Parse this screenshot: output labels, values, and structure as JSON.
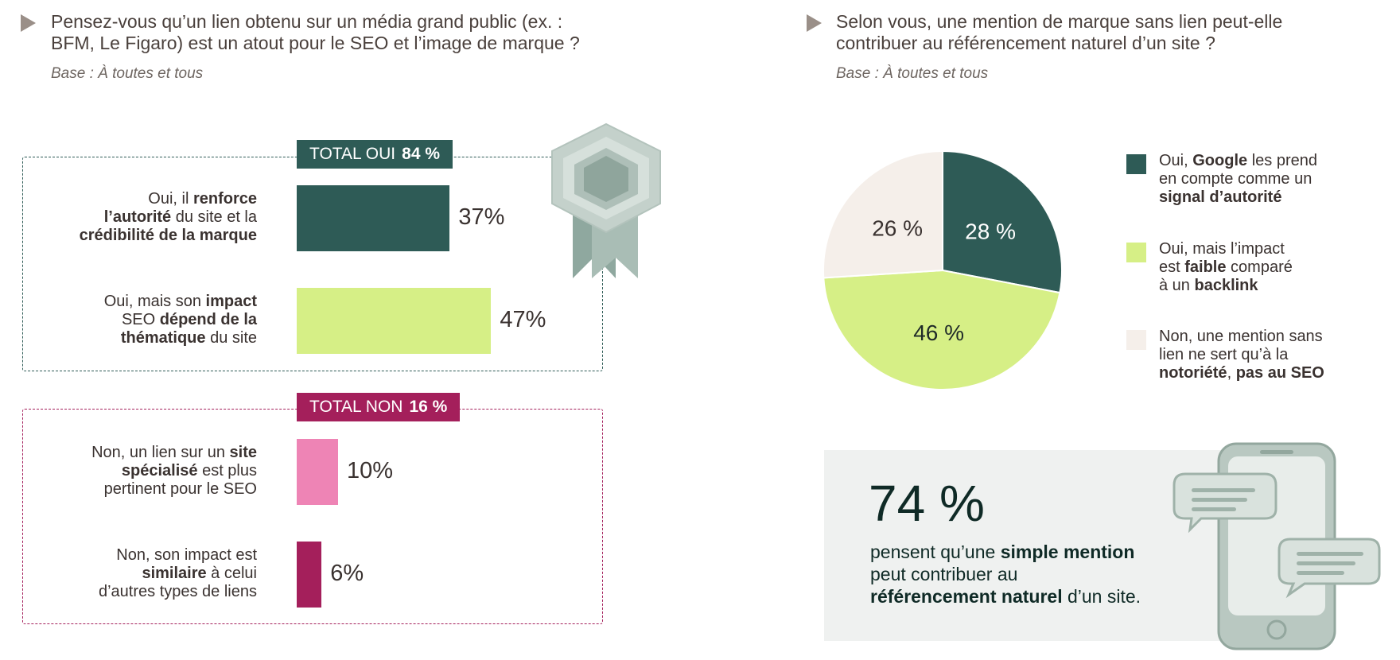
{
  "left": {
    "question": "Pensez-vous qu’un lien obtenu sur un média grand public (ex. : BFM, Le Figaro) est un atout pour le SEO et l’image de marque ?",
    "question_line1": "Pensez-vous qu’un lien obtenu sur un média grand public (ex. :",
    "question_line2": "BFM, Le Figaro) est un atout pour le SEO et l’image de marque ?",
    "base": "Base : À toutes et tous",
    "total_yes_label": "TOTAL OUI",
    "total_yes_value": "84 %",
    "total_no_label": "TOTAL NON",
    "total_no_value": "16 %",
    "colors": {
      "yes_frame": "#2e5b56",
      "no_frame": "#a41f5b"
    }
  },
  "right": {
    "question_line1": "Selon vous, une mention de marque sans lien peut-elle",
    "question_line2": "contribuer au référencement naturel d’un site  ?",
    "base": "Base : À toutes et tous",
    "callout": {
      "value": "74 %",
      "text_a": "pensent qu’une ",
      "text_b": "simple mention",
      "text_c": "peut contribuer au",
      "text_d": "référencement naturel",
      "text_e": " d’un site."
    },
    "illustration": "phone-chat-icon"
  },
  "badge_icon": "award-ribbon-icon",
  "chart_data": [
    {
      "type": "bar",
      "orientation": "horizontal",
      "categories": [
        "Oui, il renforce l’autorité du site et la crédibilité de la marque",
        "Oui, mais son impact SEO dépend de la thématique du site",
        "Non, un lien sur un site spécialisé est plus pertinent pour le SEO",
        "Non, son impact est similaire à celui d’autres types de liens"
      ],
      "values": [
        37,
        47,
        10,
        6
      ],
      "value_labels": [
        "37%",
        "47%",
        "10%",
        "6%"
      ],
      "colors": [
        "#2e5b56",
        "#d6ef86",
        "#ee84b5",
        "#a41f5b"
      ],
      "groups": [
        {
          "name": "TOTAL OUI",
          "total": "84 %",
          "items": [
            0,
            1
          ]
        },
        {
          "name": "TOTAL NON",
          "total": "16 %",
          "items": [
            2,
            3
          ]
        }
      ],
      "label_parts": [
        [
          [
            "Oui, il ",
            false
          ],
          [
            "renforce",
            true
          ],
          [
            "\n",
            false
          ],
          [
            "l’autorité",
            true
          ],
          [
            " du site et la",
            false
          ],
          [
            "\n",
            false
          ],
          [
            "crédibilité de la marque",
            true
          ]
        ],
        [
          [
            "Oui, mais son ",
            false
          ],
          [
            "impact",
            true
          ],
          [
            "\n",
            false
          ],
          [
            "SEO ",
            false
          ],
          [
            "dépend de la",
            true
          ],
          [
            "\n",
            false
          ],
          [
            "thématique",
            true
          ],
          [
            " du site",
            false
          ]
        ],
        [
          [
            "Non, un lien sur un ",
            false
          ],
          [
            "site",
            true
          ],
          [
            "\n",
            false
          ],
          [
            "spécialisé",
            true
          ],
          [
            " est plus",
            false
          ],
          [
            "\n",
            false
          ],
          [
            "pertinent pour le SEO",
            false
          ]
        ],
        [
          [
            "Non, son impact est",
            false
          ],
          [
            "\n",
            false
          ],
          [
            "similaire",
            true
          ],
          [
            " à celui",
            false
          ],
          [
            "\n",
            false
          ],
          [
            "d’autres types de liens",
            false
          ]
        ]
      ],
      "xlim": [
        0,
        100
      ]
    },
    {
      "type": "pie",
      "categories": [
        "Oui, Google les prend en compte comme un signal d’autorité",
        "Oui, mais l’impact est faible comparé à un backlink",
        "Non, une mention sans lien ne sert qu’à la notoriété, pas au SEO"
      ],
      "values": [
        28,
        46,
        26
      ],
      "value_labels": [
        "28 %",
        "46 %",
        "26 %"
      ],
      "colors": [
        "#2e5b56",
        "#d6ef86",
        "#f5efea"
      ],
      "label_colors": [
        "#ffffff",
        "#1f2a28",
        "#3a3230"
      ],
      "legend_parts": [
        [
          [
            "Oui, ",
            false
          ],
          [
            "Google",
            true
          ],
          [
            " les prend",
            false
          ],
          [
            "\n",
            false
          ],
          [
            "en compte comme un",
            false
          ],
          [
            "\n",
            false
          ],
          [
            "signal d’autorité",
            true
          ]
        ],
        [
          [
            "Oui, mais l’impact",
            false
          ],
          [
            "\n",
            false
          ],
          [
            "est ",
            false
          ],
          [
            "faible",
            true
          ],
          [
            " comparé",
            false
          ],
          [
            "\n",
            false
          ],
          [
            "à un ",
            false
          ],
          [
            "backlink",
            true
          ]
        ],
        [
          [
            "Non, une mention sans",
            false
          ],
          [
            "\n",
            false
          ],
          [
            "lien ne sert qu’à la",
            false
          ],
          [
            "\n",
            false
          ],
          [
            "notoriété",
            true
          ],
          [
            ", ",
            false
          ],
          [
            "pas au SEO",
            true
          ]
        ]
      ],
      "legend_position": "right",
      "start_angle": "12 o'clock",
      "direction": "clockwise"
    }
  ]
}
